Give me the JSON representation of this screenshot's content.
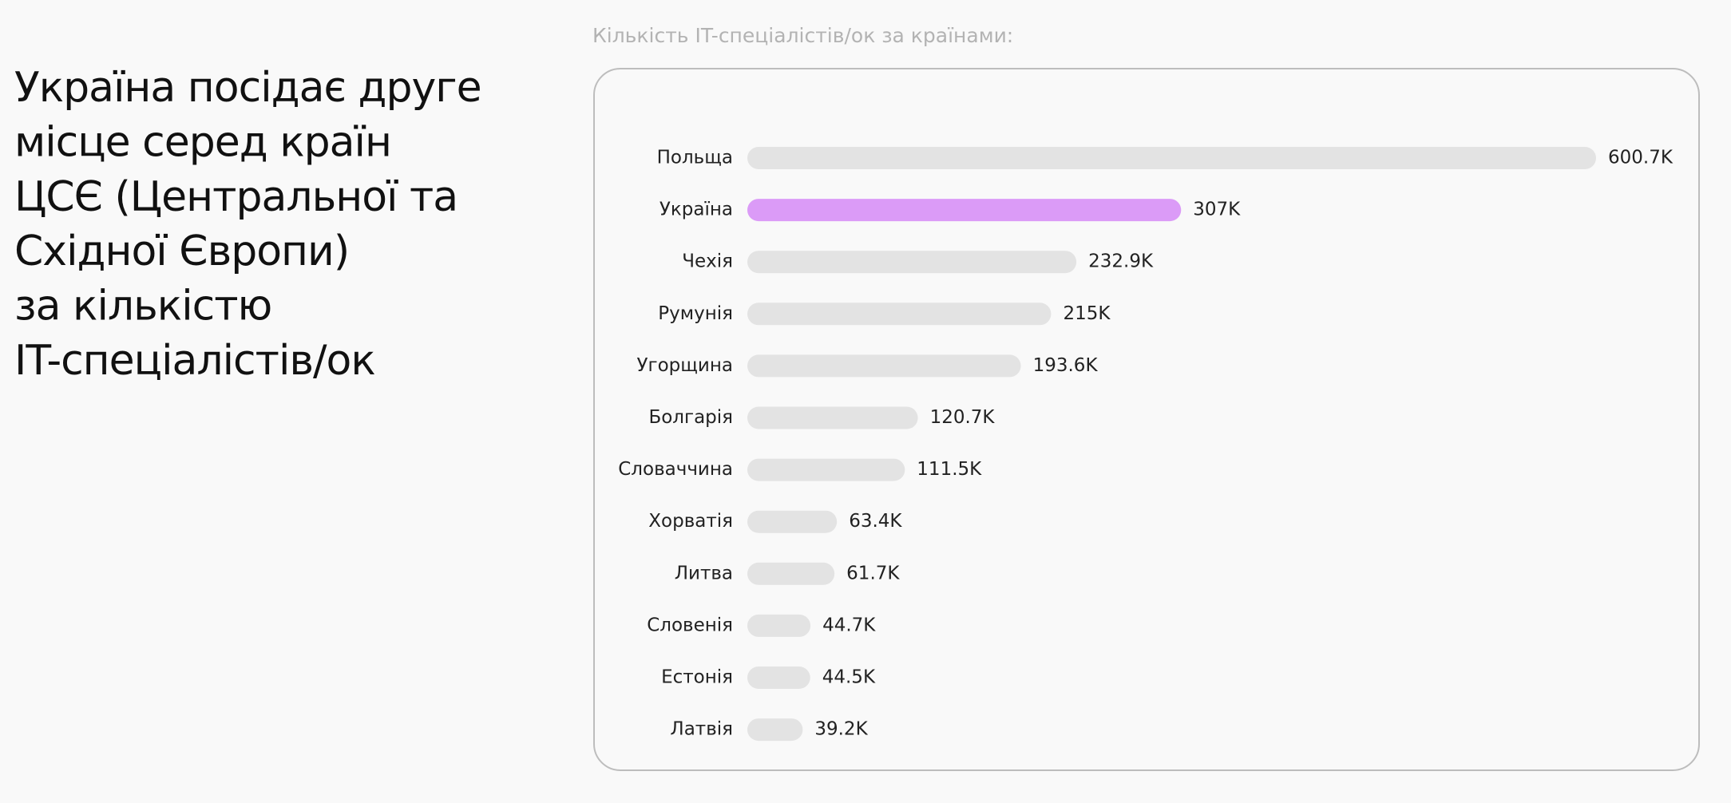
{
  "heading": [
    "Україна посідає друге",
    "місце серед країн",
    "ЦСЄ (Центральної та",
    "Східної Європи)",
    "за кількістю",
    "IT-спеціалістів/ок"
  ],
  "chart_data": {
    "type": "bar",
    "orientation": "horizontal",
    "title": "Кількість IT-спеціалістів/ок за країнами:",
    "categories": [
      "Польща",
      "Україна",
      "Чехія",
      "Румунія",
      "Угорщина",
      "Болгарія",
      "Словаччина",
      "Хорватія",
      "Литва",
      "Словенія",
      "Естонія",
      "Латвія"
    ],
    "values": [
      600700,
      307000,
      232900,
      215000,
      193600,
      120700,
      111500,
      63400,
      61700,
      44700,
      44500,
      39200
    ],
    "value_labels": [
      "600.7K",
      "307K",
      "232.9K",
      "215K",
      "193.6K",
      "120.7K",
      "111.5K",
      "63.4K",
      "61.7K",
      "44.7K",
      "44.5K",
      "39.2K"
    ],
    "colors": [
      "#e3e3e3",
      "#db9bf7",
      "#e3e3e3",
      "#e3e3e3",
      "#e3e3e3",
      "#e3e3e3",
      "#e3e3e3",
      "#e3e3e3",
      "#e3e3e3",
      "#e3e3e3",
      "#e3e3e3",
      "#e3e3e3"
    ]
  }
}
